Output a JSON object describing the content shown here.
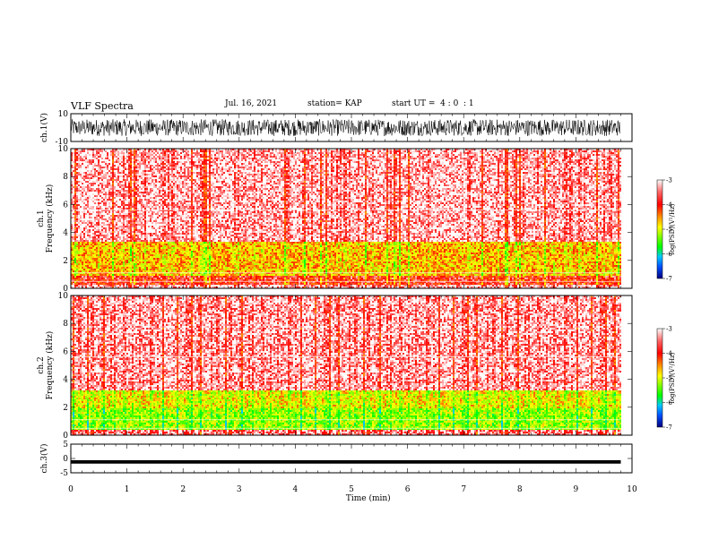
{
  "header": {
    "title": "VLF Spectra",
    "date": "Jul. 16, 2021",
    "station": "station= KAP",
    "start": "start UT =  4 : 0  : 1"
  },
  "chart_data": [
    {
      "type": "line",
      "panel": "ch1-waveform",
      "ylabel": "ch.1(V)",
      "ylim": [
        -10,
        10
      ],
      "yticks": [
        "10",
        "-10"
      ],
      "xlim": [
        0,
        10
      ],
      "series": [
        {
          "values_description_range": [
            -8,
            8
          ]
        }
      ],
      "color": "#000000"
    },
    {
      "type": "heatmap",
      "panel": "ch1-spectrogram",
      "ylabel": "ch.1\nFrequency (kHz)",
      "ylabel_lines": [
        "ch.1",
        "Frequency (kHz)"
      ],
      "ylim": [
        0,
        10
      ],
      "yticks": [
        "0",
        "2",
        "4",
        "6",
        "8",
        "10"
      ],
      "xlim": [
        0,
        9.8
      ],
      "colorbar": {
        "label": "log(PSD)(V²/Hz)",
        "range": [
          -7,
          -3
        ],
        "ticks": [
          "-3",
          "-4",
          "-5",
          "-6",
          "-7"
        ]
      },
      "bands_log_psd": [
        {
          "f": [
            0,
            0.3
          ],
          "level": -3.3
        },
        {
          "f": [
            0.3,
            1.0
          ],
          "level": -3.6
        },
        {
          "f": [
            1.0,
            3.4
          ],
          "level": -4.2
        },
        {
          "f": [
            3.4,
            10
          ],
          "level": -3.3
        }
      ]
    },
    {
      "type": "heatmap",
      "panel": "ch2-spectrogram",
      "ylabel": "ch.2\nFrequency (kHz)",
      "ylabel_lines": [
        "ch.2",
        "Frequency (kHz)"
      ],
      "ylim": [
        0,
        10
      ],
      "yticks": [
        "0",
        "2",
        "4",
        "6",
        "8",
        "10"
      ],
      "xlim": [
        0,
        9.8
      ],
      "colorbar": {
        "label": "log(PSD)(V²/Hz)",
        "range": [
          -7,
          -3
        ],
        "ticks": [
          "-3",
          "-4",
          "-5",
          "-6",
          "-7"
        ]
      },
      "bands_log_psd": [
        {
          "f": [
            0,
            0.5
          ],
          "level": -3.4
        },
        {
          "f": [
            0.5,
            2.0
          ],
          "level": -4.7
        },
        {
          "f": [
            2.0,
            3.3
          ],
          "level": -4.4
        },
        {
          "f": [
            3.3,
            10
          ],
          "level": -3.3
        }
      ]
    },
    {
      "type": "line",
      "panel": "ch3-waveform",
      "ylabel": "ch.3(V)",
      "ylim": [
        -5,
        5
      ],
      "yticks": [
        "5",
        "0",
        "-5"
      ],
      "xlim": [
        0,
        9.8
      ],
      "series": [
        {
          "values_description_range": [
            -1.8,
            -0.6
          ]
        }
      ],
      "color": "#000000"
    }
  ],
  "xaxis": {
    "label": "Time (min)",
    "ticks": [
      "0",
      "1",
      "2",
      "3",
      "4",
      "5",
      "6",
      "7",
      "8",
      "9",
      "10"
    ],
    "range": [
      0,
      10
    ]
  }
}
